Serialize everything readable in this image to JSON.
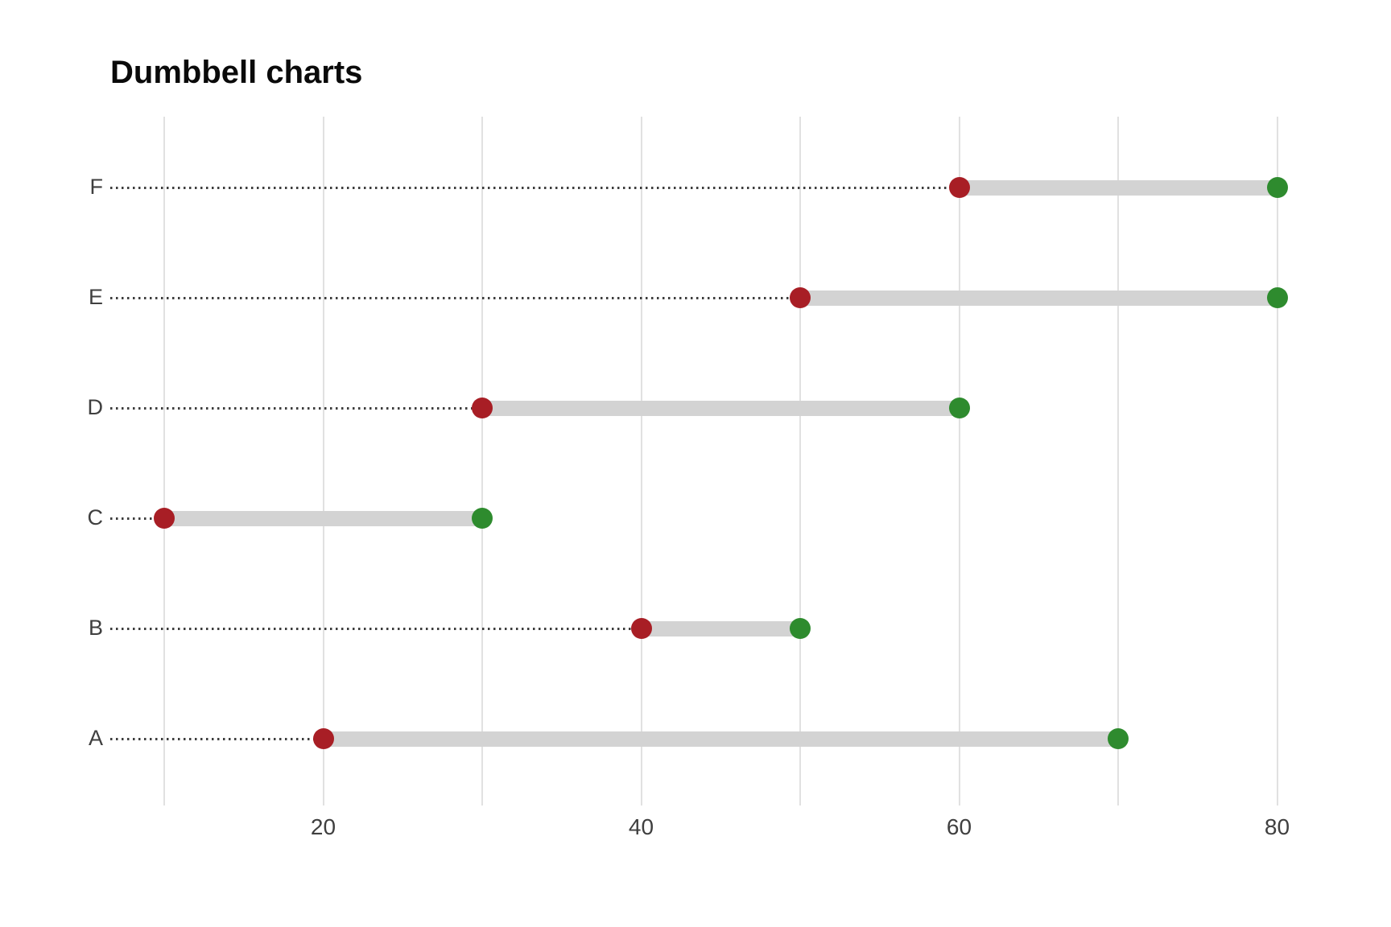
{
  "title": "Dumbbell charts",
  "colors": {
    "start_dot": "#a81e25",
    "end_dot": "#2e8b2e",
    "bar": "#d3d3d3",
    "gridline": "#e1e1e1",
    "leader_line": "#3d3d3d",
    "axis_text": "#3f3f3f",
    "title_text": "#0a0a0a"
  },
  "chart_data": {
    "type": "dumbbell",
    "orientation": "horizontal",
    "title": "Dumbbell charts",
    "xlabel": "",
    "ylabel": "",
    "grid": true,
    "categories_top_to_bottom": [
      "F",
      "E",
      "D",
      "C",
      "B",
      "A"
    ],
    "series": [
      {
        "name": "start",
        "color": "#a81e25",
        "values": [
          60,
          50,
          30,
          10,
          40,
          20
        ]
      },
      {
        "name": "end",
        "color": "#2e8b2e",
        "values": [
          80,
          80,
          60,
          30,
          50,
          70
        ]
      }
    ],
    "x_axis": {
      "range": [
        10,
        80
      ],
      "gridline_values": [
        10,
        20,
        30,
        40,
        50,
        60,
        70,
        80
      ],
      "tick_values": [
        20,
        40,
        60,
        80
      ],
      "tick_labels": [
        "20",
        "40",
        "60",
        "80"
      ]
    }
  }
}
